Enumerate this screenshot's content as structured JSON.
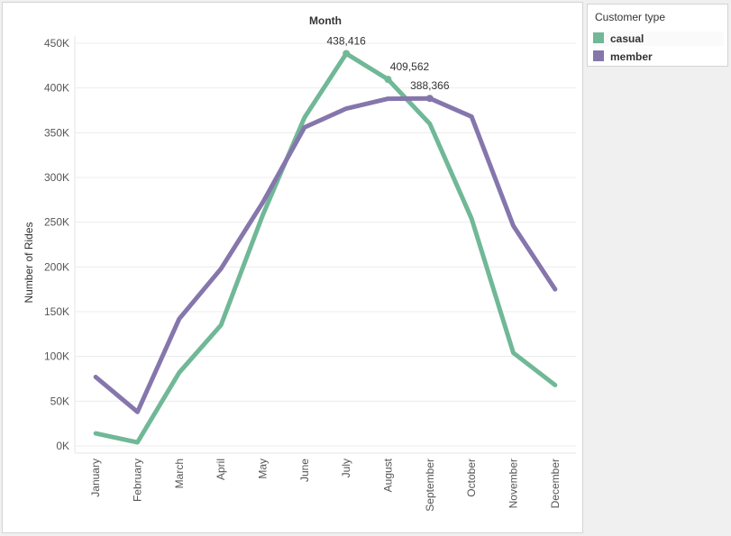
{
  "chart_data": {
    "type": "line",
    "title": "Month",
    "xlabel": "",
    "ylabel": "Number of Rides",
    "categories": [
      "January",
      "February",
      "March",
      "April",
      "May",
      "June",
      "July",
      "August",
      "September",
      "October",
      "November",
      "December"
    ],
    "series": [
      {
        "name": "casual",
        "color": "#70b897",
        "values": [
          14000,
          4000,
          82000,
          135000,
          258000,
          367000,
          438416,
          409562,
          360000,
          254000,
          104000,
          68000
        ]
      },
      {
        "name": "member",
        "color": "#8576ac",
        "values": [
          77000,
          38000,
          142000,
          198000,
          272000,
          356000,
          377000,
          388000,
          388366,
          368000,
          246000,
          175000
        ]
      }
    ],
    "data_labels": [
      {
        "series": "casual",
        "index": 6,
        "text": "438,416"
      },
      {
        "series": "casual",
        "index": 7,
        "text": "409,562"
      },
      {
        "series": "member",
        "index": 8,
        "text": "388,366"
      }
    ],
    "ylim": [
      0,
      450000
    ],
    "yticks": [
      {
        "value": 0,
        "label": "0K"
      },
      {
        "value": 50000,
        "label": "50K"
      },
      {
        "value": 100000,
        "label": "100K"
      },
      {
        "value": 150000,
        "label": "150K"
      },
      {
        "value": 200000,
        "label": "200K"
      },
      {
        "value": 250000,
        "label": "250K"
      },
      {
        "value": 300000,
        "label": "300K"
      },
      {
        "value": 350000,
        "label": "350K"
      },
      {
        "value": 400000,
        "label": "400K"
      },
      {
        "value": 450000,
        "label": "450K"
      }
    ],
    "grid": true,
    "legend_position": "right"
  },
  "legend": {
    "title": "Customer type",
    "items": [
      {
        "label": "casual",
        "color": "#70b897"
      },
      {
        "label": "member",
        "color": "#8576ac"
      }
    ]
  }
}
